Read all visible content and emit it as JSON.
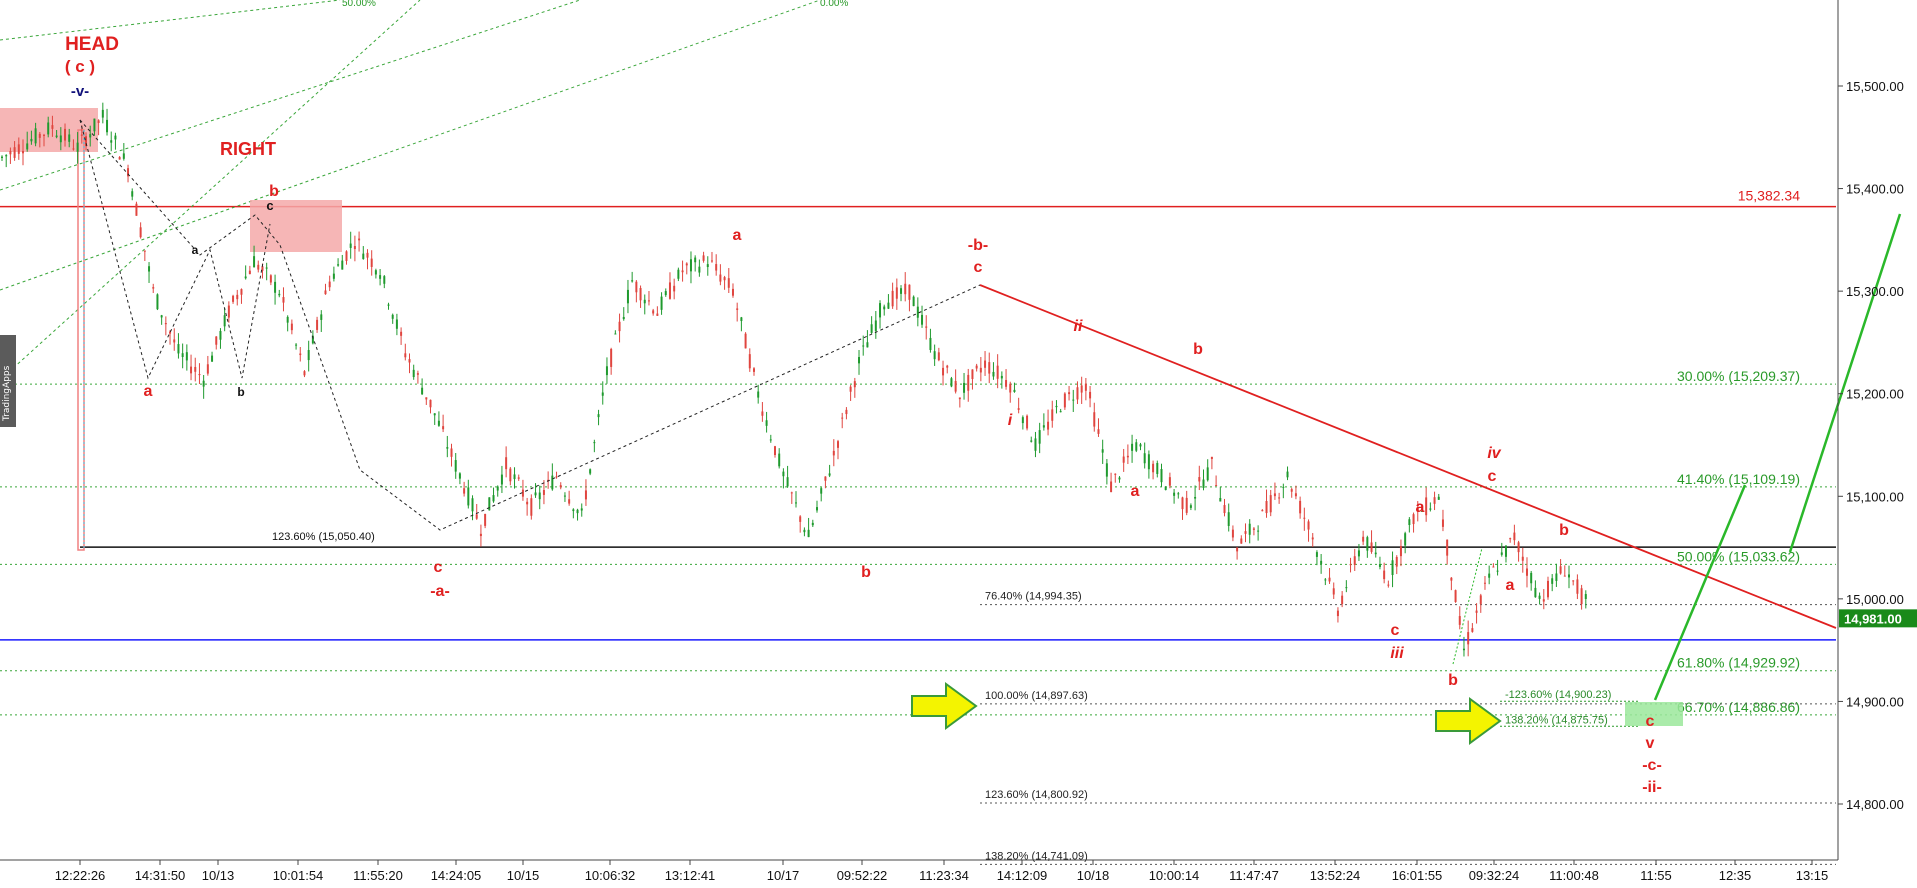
{
  "watermark": "TradingApps",
  "chart_data": {
    "type": "candlestick",
    "ylim": [
      14720,
      15600
    ],
    "y_ticks": [
      "15,500.00",
      "15,400.00",
      "15,300.00",
      "15,200.00",
      "15,100.00",
      "15,000.00",
      "14,900.00",
      "14,800.00"
    ],
    "x_ticks": [
      "12:22:26",
      "14:31:50",
      "10/13",
      "10:01:54",
      "11:55:20",
      "14:24:05",
      "10/15",
      "10:06:32",
      "13:12:41",
      "10/17",
      "09:52:22",
      "11:23:34",
      "14:12:09",
      "10/18",
      "10:00:14",
      "11:47:47",
      "13:52:24",
      "16:01:55",
      "09:32:24",
      "11:00:48",
      "11:55",
      "12:35",
      "13:15"
    ],
    "price_series": [
      15430,
      15445,
      15460,
      15440,
      15470,
      15420,
      15300,
      15240,
      15215,
      15280,
      15330,
      15300,
      15220,
      15310,
      15350,
      15320,
      15240,
      15190,
      15130,
      15070,
      15130,
      15090,
      15120,
      15080,
      15220,
      15310,
      15280,
      15320,
      15330,
      15300,
      15200,
      15120,
      15060,
      15140,
      15230,
      15290,
      15300,
      15240,
      15200,
      15230,
      15210,
      15150,
      15190,
      15210,
      15110,
      15150,
      15120,
      15090,
      15130,
      15050,
      15080,
      15120,
      15060,
      14990,
      15060,
      15020,
      15080,
      15100,
      14950,
      15020,
      15060,
      15000,
      15030,
      14990
    ],
    "current_price": "14,981.00",
    "levels": {
      "red_resistance": "15,382.34",
      "blue_support_value": 14960
    },
    "fib_right": [
      {
        "label": "30.00% (15,209.37)",
        "value": 15209.37
      },
      {
        "label": "41.40% (15,109.19)",
        "value": 15109.19
      },
      {
        "label": "50.00% (15,033.62)",
        "value": 15033.62
      },
      {
        "label": "61.80% (14,929.92)",
        "value": 14929.92
      },
      {
        "label": "66.70% (14,886.86)",
        "value": 14886.86
      }
    ],
    "fib_mid": [
      {
        "label": "76.40% (14,994.35)",
        "value": 14994.35
      },
      {
        "label": "100.00% (14,897.63)",
        "value": 14897.63
      },
      {
        "label": "123.60% (14,800.92)",
        "value": 14800.92
      },
      {
        "label": "138.20% (14,741.09)",
        "value": 14741.09
      }
    ],
    "fib_small": [
      {
        "label": "-123.60% (14,900.23)",
        "value": 14900.23
      },
      {
        "label": "138.20% (14,875.75)",
        "value": 14875.75
      }
    ],
    "fib_left": {
      "label": "123.60% (15,050.40)",
      "value": 15050.4
    },
    "channel_top_labels": [
      "50.00%",
      "0.00%"
    ],
    "annotations": {
      "head": "HEAD",
      "head_c": "( c )",
      "head_v": "-v-",
      "right": "RIGHT",
      "wave_a": "a",
      "wave_b": "b",
      "wave_c": "c",
      "wave_i": "i",
      "wave_ii": "ii",
      "wave_iii": "iii",
      "wave_iv": "iv",
      "wave_v": "v",
      "minus_a": "-a-",
      "minus_b": "-b-",
      "minus_c": "-c-",
      "minus_ii": "-ii-"
    }
  }
}
